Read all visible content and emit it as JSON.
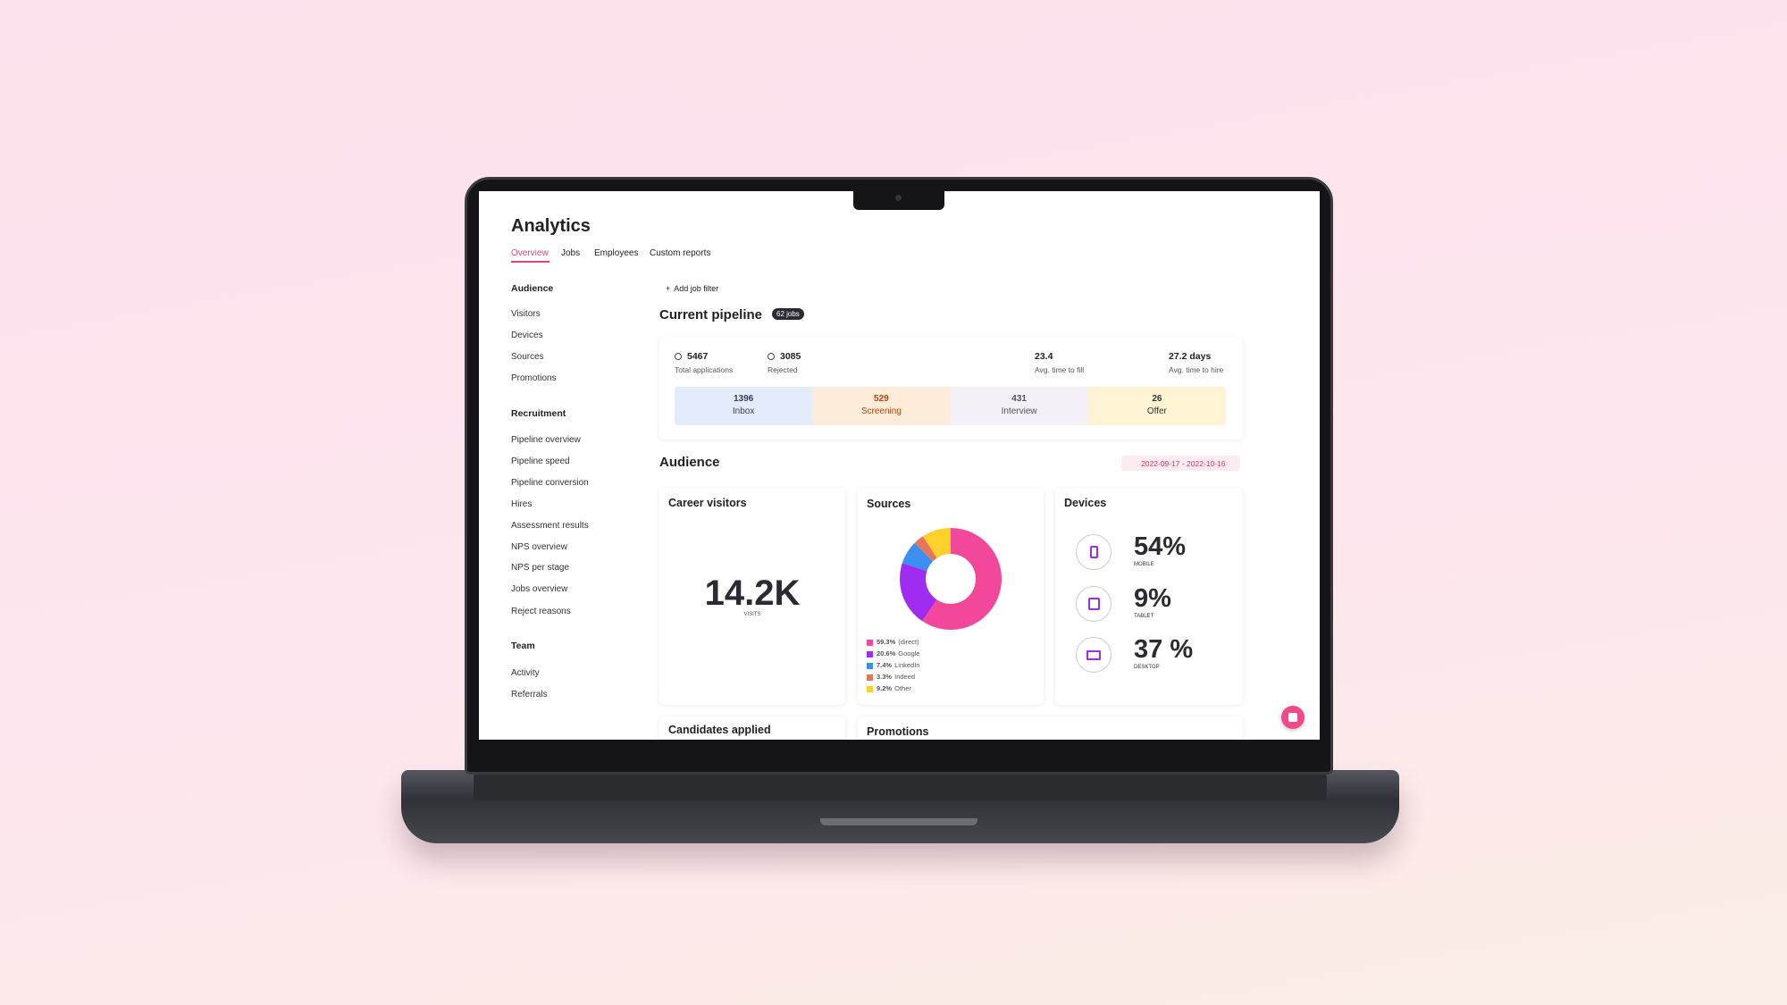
{
  "header": {
    "title": "Analytics",
    "tabs": [
      "Overview",
      "Jobs",
      "Employees",
      "Custom reports"
    ]
  },
  "sidebar": [
    {
      "heading": "Audience",
      "items": [
        "Visitors",
        "Devices",
        "Sources",
        "Promotions"
      ]
    },
    {
      "heading": "Recruitment",
      "items": [
        "Pipeline overview",
        "Pipeline speed",
        "Pipeline conversion",
        "Hires",
        "Assessment results",
        "NPS overview",
        "NPS per stage",
        "Jobs overview",
        "Reject reasons"
      ]
    },
    {
      "heading": "Team",
      "items": [
        "Activity",
        "Referrals"
      ]
    }
  ],
  "filter": "Add job filter",
  "pipeline": {
    "title": "Current pipeline",
    "badge": "62 jobs",
    "stats": [
      {
        "value": 5467,
        "label": "Total applications"
      },
      {
        "value": 3085,
        "label": "Rejected"
      },
      {
        "value": 23.4,
        "label": "Avg. time to fill"
      },
      {
        "value": "27.2 days",
        "label": "Avg. time to hire"
      }
    ],
    "stages": [
      {
        "value": 1396,
        "label": "Inbox"
      },
      {
        "value": 529,
        "label": "Screening"
      },
      {
        "value": 431,
        "label": "Interview"
      },
      {
        "value": 26,
        "label": "Offer"
      }
    ]
  },
  "audience": {
    "title": "Audience",
    "date_range": "2022-09-17 - 2022-10-16",
    "visitors": {
      "title": "Career visitors",
      "value": "14.2K",
      "label": "VISITS"
    },
    "sources": {
      "title": "Sources",
      "names": [
        "(direct)",
        "Google",
        "LinkedIn",
        "Indeed",
        "Other"
      ],
      "values": [
        59.3,
        20.6,
        7.4,
        3.3,
        9.2
      ],
      "value_labels": [
        "59.3%",
        "20.6%",
        "7.4%",
        "3.3%",
        "9.2%"
      ],
      "colors": [
        "#f2479a",
        "#a02cf2",
        "#3b8ff0",
        "#e8745a",
        "#fcd12a"
      ]
    },
    "devices": {
      "title": "Devices",
      "items": [
        {
          "value": "54%",
          "label": "MOBILE"
        },
        {
          "value": "9%",
          "label": "TABLET"
        },
        {
          "value": "37 %",
          "label": "DESKTOP"
        }
      ]
    }
  },
  "bottom_cards": [
    "Candidates applied",
    "Promotions"
  ]
}
